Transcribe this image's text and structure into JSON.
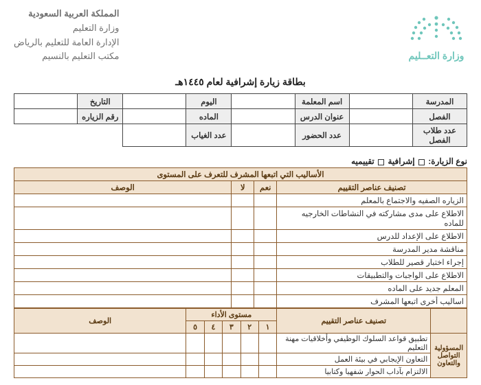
{
  "header": {
    "line1": "المملكة العربية السعودية",
    "line2": "وزارة التعليم",
    "line3": "الإدارة العامة للتعليم بالرياض",
    "line4": "مكتب التعليم بالنسيم",
    "line5": "",
    "logo_text": "وزارة التعــليم",
    "logo_color": "#6fc6bb"
  },
  "title": "بطاقة زيارة إشرافية لعام ١٤٤٥هـ",
  "info": {
    "row1": {
      "school_lbl": "المدرسة",
      "school_val": "",
      "teacher_lbl": "اسم المعلمة",
      "teacher_val": "",
      "day_lbl": "اليوم",
      "day_val": "",
      "date_lbl": "التاريخ",
      "date_val": ""
    },
    "row2": {
      "class_lbl": "الفصل",
      "class_val": "",
      "lesson_lbl": "عنوان الدرس",
      "lesson_val": "",
      "subject_lbl": "الماده",
      "subject_val": "",
      "visitno_lbl": "رقم الزياره",
      "visitno_val": ""
    },
    "row3": {
      "students_lbl": "عدد طلاب الفصل",
      "students_val": "",
      "present_lbl": "عدد الحضور",
      "present_val": "",
      "absent_lbl": "عدد الغياب",
      "absent_val": ""
    }
  },
  "visit_type": {
    "prefix": "نوع الزيارة:",
    "opt1": "إشرافية",
    "opt2": "تقييميه"
  },
  "eval1": {
    "section_title": "الأساليب التي اتبعها المشرف للتعرف على المستوى",
    "col_items": "تصنيف عناصر التقييم",
    "col_yes": "نعم",
    "col_no": "لا",
    "col_desc": "الوصف",
    "items": [
      "الزياره الصفيه والاجتماع بالمعلم",
      "الاطلاع على مدى مشاركته في النشاطات الخارجيه للماده",
      "الاطلاع على الإعداد للدرس",
      "مناقشة مدير المدرسة",
      "إجراء اختبار قصير للطلاب",
      "الاطلاع على الواجبات والتطبيقات",
      "المعلم جديد على الماده",
      "اساليب أخرى اتبعها المشرف"
    ]
  },
  "perf": {
    "col_items": "تصنيف عناصر التقييم",
    "col_level": "مستوى الأداء",
    "col_desc": "الوصف",
    "levels": [
      "١",
      "٢",
      "٣",
      "٤",
      "٥"
    ],
    "side_label": "المسؤولية\nالتواصل\nوالتعاون",
    "items": [
      "تطبيق قواعد السلوك الوظيفي وأخلاقيات مهنة التعليم",
      "التعاون الإيجابي في بيئة العمل",
      "الالتزام بآداب الحوار شفهيا وكتابيا"
    ]
  },
  "colors": {
    "table_border": "#8a5a2a",
    "table_fill": "#f2e3d0",
    "info_border": "#444",
    "info_fill": "#eeeeee"
  }
}
